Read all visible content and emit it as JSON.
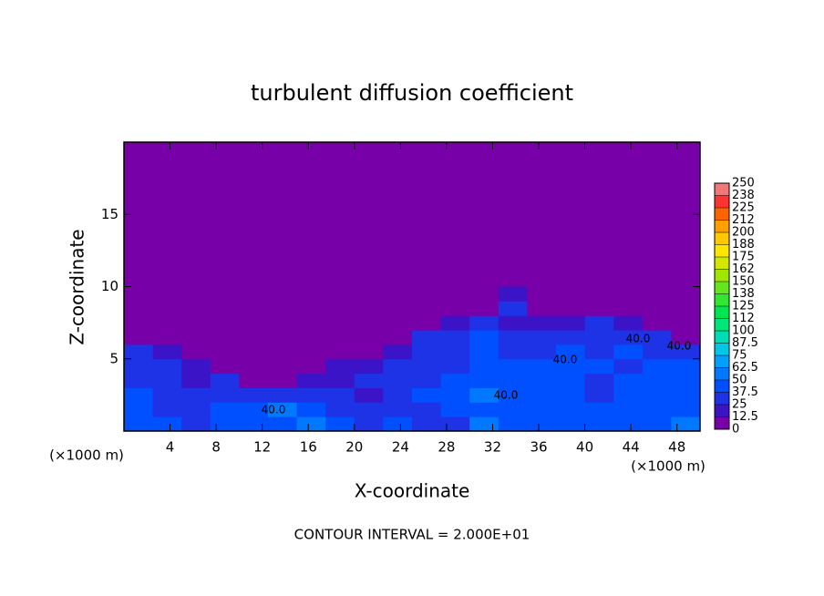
{
  "chart_data": {
    "type": "contour",
    "title": "turbulent diffusion coefficient",
    "xlabel": "X-coordinate",
    "ylabel": "Z-coordinate",
    "x_unit": "(×1000 m)",
    "y_unit": "(×1000 m)",
    "footer": "CONTOUR INTERVAL = 2.000E+01",
    "xlim": [
      0,
      50
    ],
    "ylim": [
      0,
      20
    ],
    "xticks": [
      4,
      8,
      12,
      16,
      20,
      24,
      28,
      32,
      36,
      40,
      44,
      48
    ],
    "yticks": [
      5,
      10,
      15
    ],
    "grid_x": [
      0,
      2.5,
      5,
      7.5,
      10,
      12.5,
      15,
      17.5,
      20,
      22.5,
      25,
      27.5,
      30,
      32.5,
      35,
      37.5,
      40,
      42.5,
      45,
      47.5,
      50
    ],
    "grid_z": [
      0,
      1,
      2,
      3,
      4,
      5,
      6,
      7,
      8,
      9,
      10
    ],
    "field": [
      [
        45,
        40,
        35,
        40,
        40,
        45,
        50,
        40,
        30,
        40,
        35,
        35,
        50,
        45,
        45,
        40,
        45,
        40,
        45,
        50
      ],
      [
        40,
        35,
        30,
        40,
        45,
        55,
        45,
        35,
        25,
        35,
        35,
        40,
        45,
        40,
        45,
        45,
        40,
        40,
        40,
        45
      ],
      [
        40,
        35,
        25,
        35,
        30,
        30,
        35,
        25,
        20,
        30,
        40,
        40,
        50,
        40,
        45,
        40,
        35,
        40,
        40,
        40
      ],
      [
        35,
        30,
        20,
        25,
        10,
        10,
        20,
        20,
        25,
        30,
        35,
        40,
        45,
        40,
        45,
        40,
        35,
        40,
        40,
        40
      ],
      [
        30,
        25,
        15,
        10,
        5,
        5,
        10,
        15,
        20,
        25,
        35,
        35,
        45,
        40,
        40,
        40,
        40,
        35,
        40,
        40
      ],
      [
        25,
        20,
        10,
        5,
        5,
        5,
        5,
        5,
        10,
        15,
        30,
        35,
        45,
        35,
        35,
        40,
        35,
        40,
        35,
        35
      ],
      [
        10,
        5,
        5,
        5,
        5,
        5,
        5,
        5,
        5,
        5,
        25,
        30,
        40,
        30,
        30,
        35,
        35,
        35,
        30,
        10
      ],
      [
        5,
        5,
        5,
        5,
        5,
        5,
        5,
        5,
        5,
        5,
        10,
        15,
        35,
        15,
        15,
        20,
        25,
        20,
        10,
        5
      ],
      [
        5,
        5,
        5,
        5,
        5,
        5,
        5,
        5,
        5,
        5,
        5,
        5,
        5,
        25,
        5,
        5,
        5,
        5,
        5,
        5
      ],
      [
        5,
        5,
        5,
        5,
        5,
        5,
        5,
        5,
        5,
        5,
        5,
        5,
        5,
        15,
        5,
        5,
        5,
        5,
        5,
        5
      ]
    ],
    "contour_labels": [
      "40.0",
      "40.0",
      "40.0",
      "40.0",
      "40.0"
    ],
    "colorbar_levels": [
      0,
      {
        "value": 12.5,
        "label": "12.5"
      },
      25,
      {
        "value": 37.5,
        "label": "37.5"
      },
      50,
      {
        "value": 62.5,
        "label": "62.5"
      },
      75,
      {
        "value": 87.5,
        "label": "87.5"
      },
      100,
      {
        "value": 112.5,
        "label": "112"
      },
      125,
      {
        "value": 137.5,
        "label": "138"
      },
      150,
      {
        "value": 162.5,
        "label": "162"
      },
      175,
      {
        "value": 187.5,
        "label": "188"
      },
      200,
      {
        "value": 212.5,
        "label": "212"
      },
      225,
      {
        "value": 237.5,
        "label": "238"
      },
      250
    ],
    "colors": [
      "#7800a8",
      "#3c14c8",
      "#1e32e6",
      "#0050ff",
      "#0078ff",
      "#00a0ff",
      "#00c8e6",
      "#00dcb4",
      "#00e678",
      "#00e650",
      "#32e632",
      "#64e61e",
      "#a0e600",
      "#d2e600",
      "#ffe600",
      "#ffc800",
      "#ffa000",
      "#ff6400",
      "#ff3232",
      "#f07878"
    ]
  }
}
